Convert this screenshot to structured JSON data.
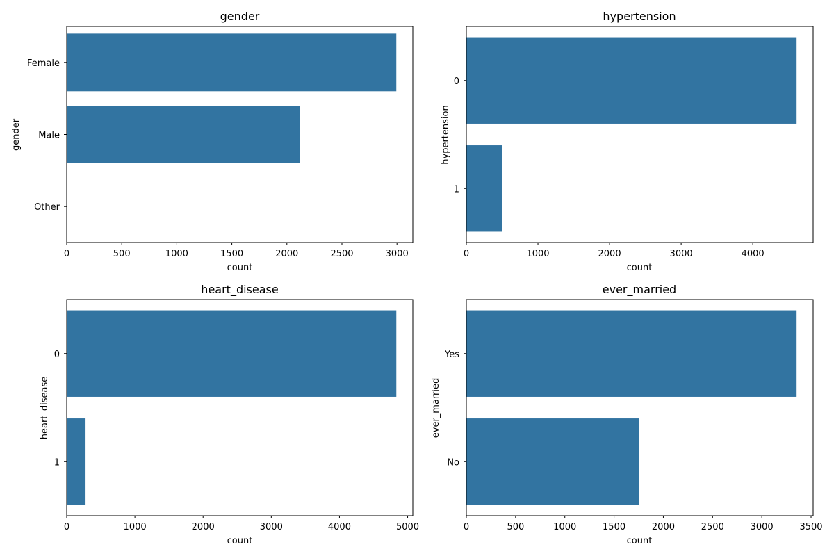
{
  "figure": {
    "bar_color": "#3274a1",
    "grid": false
  },
  "chart_data": [
    {
      "type": "bar",
      "orientation": "horizontal",
      "title": "gender",
      "xlabel": "count",
      "ylabel": "gender",
      "categories": [
        "Female",
        "Male",
        "Other"
      ],
      "values": [
        2994,
        2115,
        1
      ],
      "xlim": [
        0,
        3144
      ],
      "xticks": [
        0,
        500,
        1000,
        1500,
        2000,
        2500,
        3000
      ],
      "grid": false
    },
    {
      "type": "bar",
      "orientation": "horizontal",
      "title": "hypertension",
      "xlabel": "count",
      "ylabel": "hypertension",
      "categories": [
        "0",
        "1"
      ],
      "values": [
        4612,
        498
      ],
      "xlim": [
        0,
        4843
      ],
      "xticks": [
        0,
        1000,
        2000,
        3000,
        4000
      ],
      "grid": false
    },
    {
      "type": "bar",
      "orientation": "horizontal",
      "title": "heart_disease",
      "xlabel": "count",
      "ylabel": "heart_disease",
      "categories": [
        "0",
        "1"
      ],
      "values": [
        4834,
        276
      ],
      "xlim": [
        0,
        5076
      ],
      "xticks": [
        0,
        1000,
        2000,
        3000,
        4000,
        5000
      ],
      "grid": false
    },
    {
      "type": "bar",
      "orientation": "horizontal",
      "title": "ever_married",
      "xlabel": "count",
      "ylabel": "ever_married",
      "categories": [
        "Yes",
        "No"
      ],
      "values": [
        3353,
        1757
      ],
      "xlim": [
        0,
        3521
      ],
      "xticks": [
        0,
        500,
        1000,
        1500,
        2000,
        2500,
        3000,
        3500
      ],
      "grid": false
    }
  ]
}
